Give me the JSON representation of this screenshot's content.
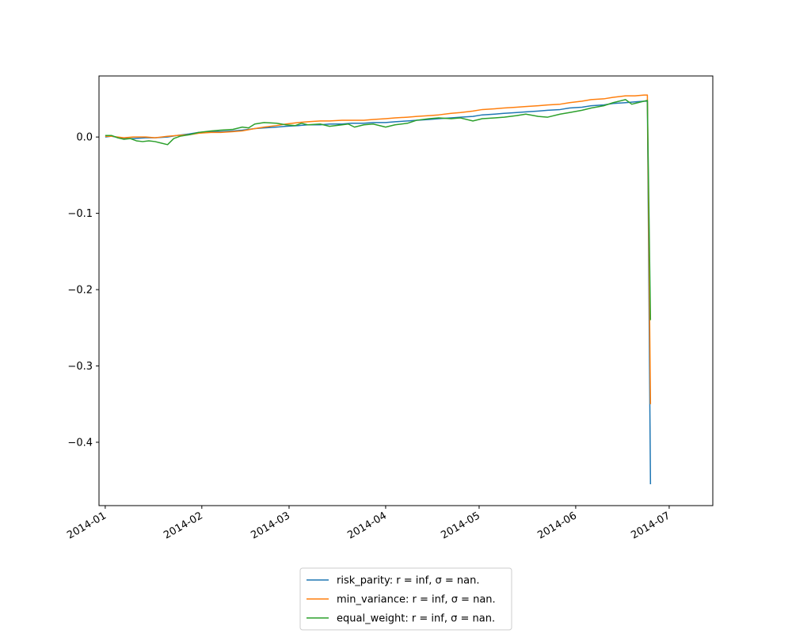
{
  "chart_data": {
    "type": "line",
    "title": "",
    "xlabel": "",
    "ylabel": "",
    "x_ticks": [
      "2014-01",
      "2014-02",
      "2014-03",
      "2014-04",
      "2014-05",
      "2014-06",
      "2014-07"
    ],
    "y_ticks": [
      "−0.4",
      "−0.3",
      "−0.2",
      "−0.1",
      "0.0"
    ],
    "xlim": [
      "2013-12-30",
      "2014-07-15"
    ],
    "ylim": [
      -0.483,
      0.08
    ],
    "grid": false,
    "legend_position": "bottom-center",
    "series": [
      {
        "name": "risk_parity: r = inf, σ = nan.",
        "color": "#1f77b4",
        "points": [
          [
            "2014-01-01",
            0.0
          ],
          [
            "2014-01-03",
            0.001
          ],
          [
            "2014-01-07",
            -0.002
          ],
          [
            "2014-01-10",
            -0.002
          ],
          [
            "2014-01-14",
            -0.001
          ],
          [
            "2014-01-17",
            -0.001
          ],
          [
            "2014-01-21",
            0.0
          ],
          [
            "2014-01-24",
            0.002
          ],
          [
            "2014-01-28",
            0.004
          ],
          [
            "2014-01-31",
            0.006
          ],
          [
            "2014-02-04",
            0.007
          ],
          [
            "2014-02-07",
            0.007
          ],
          [
            "2014-02-11",
            0.008
          ],
          [
            "2014-02-14",
            0.009
          ],
          [
            "2014-02-18",
            0.011
          ],
          [
            "2014-02-21",
            0.012
          ],
          [
            "2014-02-25",
            0.013
          ],
          [
            "2014-02-28",
            0.014
          ],
          [
            "2014-03-04",
            0.015
          ],
          [
            "2014-03-07",
            0.016
          ],
          [
            "2014-03-11",
            0.016
          ],
          [
            "2014-03-14",
            0.017
          ],
          [
            "2014-03-18",
            0.017
          ],
          [
            "2014-03-21",
            0.018
          ],
          [
            "2014-03-25",
            0.018
          ],
          [
            "2014-03-28",
            0.019
          ],
          [
            "2014-04-01",
            0.019
          ],
          [
            "2014-04-04",
            0.02
          ],
          [
            "2014-04-08",
            0.021
          ],
          [
            "2014-04-11",
            0.022
          ],
          [
            "2014-04-15",
            0.023
          ],
          [
            "2014-04-18",
            0.024
          ],
          [
            "2014-04-22",
            0.025
          ],
          [
            "2014-04-25",
            0.026
          ],
          [
            "2014-04-29",
            0.027
          ],
          [
            "2014-05-02",
            0.029
          ],
          [
            "2014-05-06",
            0.03
          ],
          [
            "2014-05-09",
            0.031
          ],
          [
            "2014-05-13",
            0.032
          ],
          [
            "2014-05-16",
            0.033
          ],
          [
            "2014-05-20",
            0.034
          ],
          [
            "2014-05-23",
            0.035
          ],
          [
            "2014-05-27",
            0.036
          ],
          [
            "2014-05-30",
            0.038
          ],
          [
            "2014-06-03",
            0.039
          ],
          [
            "2014-06-06",
            0.041
          ],
          [
            "2014-06-10",
            0.042
          ],
          [
            "2014-06-13",
            0.044
          ],
          [
            "2014-06-17",
            0.045
          ],
          [
            "2014-06-20",
            0.046
          ],
          [
            "2014-06-23",
            0.047
          ],
          [
            "2014-06-24",
            0.047
          ],
          [
            "2014-06-25",
            -0.455
          ]
        ]
      },
      {
        "name": "min_variance: r = inf, σ = nan.",
        "color": "#ff7f0e",
        "points": [
          [
            "2014-01-01",
            0.001
          ],
          [
            "2014-01-03",
            0.001
          ],
          [
            "2014-01-07",
            -0.001
          ],
          [
            "2014-01-10",
            0.0
          ],
          [
            "2014-01-14",
            0.0
          ],
          [
            "2014-01-17",
            -0.001
          ],
          [
            "2014-01-21",
            0.001
          ],
          [
            "2014-01-24",
            0.002
          ],
          [
            "2014-01-28",
            0.003
          ],
          [
            "2014-01-31",
            0.005
          ],
          [
            "2014-02-04",
            0.006
          ],
          [
            "2014-02-07",
            0.006
          ],
          [
            "2014-02-11",
            0.007
          ],
          [
            "2014-02-14",
            0.008
          ],
          [
            "2014-02-18",
            0.011
          ],
          [
            "2014-02-21",
            0.013
          ],
          [
            "2014-02-25",
            0.015
          ],
          [
            "2014-02-28",
            0.017
          ],
          [
            "2014-03-04",
            0.019
          ],
          [
            "2014-03-07",
            0.02
          ],
          [
            "2014-03-11",
            0.021
          ],
          [
            "2014-03-14",
            0.021
          ],
          [
            "2014-03-18",
            0.022
          ],
          [
            "2014-03-21",
            0.022
          ],
          [
            "2014-03-25",
            0.022
          ],
          [
            "2014-03-28",
            0.023
          ],
          [
            "2014-04-01",
            0.024
          ],
          [
            "2014-04-04",
            0.025
          ],
          [
            "2014-04-08",
            0.026
          ],
          [
            "2014-04-11",
            0.027
          ],
          [
            "2014-04-15",
            0.028
          ],
          [
            "2014-04-18",
            0.029
          ],
          [
            "2014-04-22",
            0.031
          ],
          [
            "2014-04-25",
            0.032
          ],
          [
            "2014-04-29",
            0.034
          ],
          [
            "2014-05-02",
            0.036
          ],
          [
            "2014-05-06",
            0.037
          ],
          [
            "2014-05-09",
            0.038
          ],
          [
            "2014-05-13",
            0.039
          ],
          [
            "2014-05-16",
            0.04
          ],
          [
            "2014-05-20",
            0.041
          ],
          [
            "2014-05-23",
            0.042
          ],
          [
            "2014-05-27",
            0.043
          ],
          [
            "2014-05-30",
            0.045
          ],
          [
            "2014-06-03",
            0.047
          ],
          [
            "2014-06-06",
            0.049
          ],
          [
            "2014-06-10",
            0.05
          ],
          [
            "2014-06-13",
            0.052
          ],
          [
            "2014-06-17",
            0.054
          ],
          [
            "2014-06-20",
            0.054
          ],
          [
            "2014-06-23",
            0.055
          ],
          [
            "2014-06-24",
            0.055
          ],
          [
            "2014-06-25",
            -0.35
          ]
        ]
      },
      {
        "name": "equal_weight: r = inf, σ = nan.",
        "color": "#2ca02c",
        "points": [
          [
            "2014-01-01",
            0.002
          ],
          [
            "2014-01-03",
            0.002
          ],
          [
            "2014-01-05",
            -0.001
          ],
          [
            "2014-01-07",
            -0.003
          ],
          [
            "2014-01-09",
            -0.002
          ],
          [
            "2014-01-11",
            -0.005
          ],
          [
            "2014-01-13",
            -0.006
          ],
          [
            "2014-01-15",
            -0.005
          ],
          [
            "2014-01-17",
            -0.006
          ],
          [
            "2014-01-19",
            -0.008
          ],
          [
            "2014-01-21",
            -0.01
          ],
          [
            "2014-01-23",
            -0.002
          ],
          [
            "2014-01-25",
            0.001
          ],
          [
            "2014-01-28",
            0.003
          ],
          [
            "2014-01-31",
            0.006
          ],
          [
            "2014-02-04",
            0.008
          ],
          [
            "2014-02-07",
            0.009
          ],
          [
            "2014-02-11",
            0.01
          ],
          [
            "2014-02-14",
            0.013
          ],
          [
            "2014-02-16",
            0.012
          ],
          [
            "2014-02-18",
            0.017
          ],
          [
            "2014-02-21",
            0.019
          ],
          [
            "2014-02-25",
            0.018
          ],
          [
            "2014-02-28",
            0.016
          ],
          [
            "2014-03-03",
            0.015
          ],
          [
            "2014-03-05",
            0.018
          ],
          [
            "2014-03-07",
            0.016
          ],
          [
            "2014-03-11",
            0.017
          ],
          [
            "2014-03-14",
            0.014
          ],
          [
            "2014-03-18",
            0.016
          ],
          [
            "2014-03-20",
            0.017
          ],
          [
            "2014-03-22",
            0.013
          ],
          [
            "2014-03-25",
            0.016
          ],
          [
            "2014-03-28",
            0.017
          ],
          [
            "2014-04-01",
            0.013
          ],
          [
            "2014-04-04",
            0.016
          ],
          [
            "2014-04-08",
            0.018
          ],
          [
            "2014-04-11",
            0.022
          ],
          [
            "2014-04-15",
            0.024
          ],
          [
            "2014-04-18",
            0.025
          ],
          [
            "2014-04-22",
            0.024
          ],
          [
            "2014-04-25",
            0.025
          ],
          [
            "2014-04-29",
            0.021
          ],
          [
            "2014-05-02",
            0.024
          ],
          [
            "2014-05-06",
            0.025
          ],
          [
            "2014-05-09",
            0.026
          ],
          [
            "2014-05-13",
            0.028
          ],
          [
            "2014-05-16",
            0.03
          ],
          [
            "2014-05-20",
            0.027
          ],
          [
            "2014-05-23",
            0.026
          ],
          [
            "2014-05-27",
            0.03
          ],
          [
            "2014-05-30",
            0.032
          ],
          [
            "2014-06-03",
            0.035
          ],
          [
            "2014-06-06",
            0.038
          ],
          [
            "2014-06-10",
            0.041
          ],
          [
            "2014-06-13",
            0.045
          ],
          [
            "2014-06-17",
            0.049
          ],
          [
            "2014-06-19",
            0.043
          ],
          [
            "2014-06-22",
            0.046
          ],
          [
            "2014-06-24",
            0.048
          ],
          [
            "2014-06-25",
            -0.24
          ]
        ]
      }
    ]
  }
}
